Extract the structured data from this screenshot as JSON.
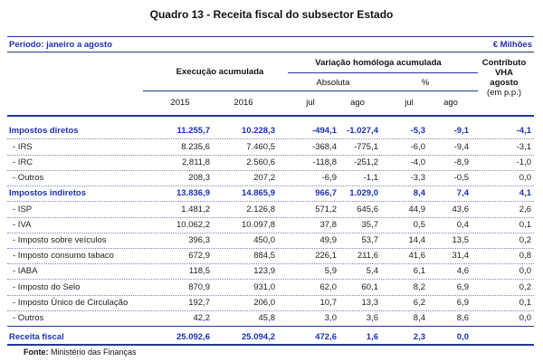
{
  "title": "Quadro 13 - Receita fiscal do subsector Estado",
  "periodo": "Período: janeiro a agosto",
  "unit": "€ Milhões",
  "headers": {
    "execucao": "Execução acumulada",
    "variacao": "Variação homóloga acumulada",
    "absoluta": "Absoluta",
    "pct": "%",
    "contributo": "Contributo VHA agosto (em p.p.)",
    "contributo_1": "Contributo",
    "contributo_2": "VHA",
    "contributo_3": "agosto",
    "contributo_4": "(em p.p.)",
    "y2015": "2015",
    "y2016": "2016",
    "jul1": "jul",
    "ago1": "ago",
    "jul2": "jul",
    "ago2": "ago"
  },
  "rows": [
    {
      "label": "Impostos diretos",
      "kind": "main",
      "v": [
        "11.255,7",
        "10.228,3",
        "-494,1",
        "-1.027,4",
        "-5,3",
        "-9,1",
        "-4,1"
      ]
    },
    {
      "label": "- IRS",
      "kind": "sub",
      "v": [
        "8.235,6",
        "7.460,5",
        "-368,4",
        "-775,1",
        "-6,0",
        "-9,4",
        "-3,1"
      ]
    },
    {
      "label": "- IRC",
      "kind": "sub",
      "v": [
        "2.811,8",
        "2.560,6",
        "-118,8",
        "-251,2",
        "-4,0",
        "-8,9",
        "-1,0"
      ]
    },
    {
      "label": "- Outros",
      "kind": "sub",
      "v": [
        "208,3",
        "207,2",
        "-6,9",
        "-1,1",
        "-3,3",
        "-0,5",
        "0,0"
      ]
    },
    {
      "label": "Impostos indiretos",
      "kind": "main",
      "v": [
        "13.836,9",
        "14.865,9",
        "966,7",
        "1.029,0",
        "8,4",
        "7,4",
        "4,1"
      ]
    },
    {
      "label": "- ISP",
      "kind": "sub",
      "v": [
        "1.481,2",
        "2.126,8",
        "571,2",
        "645,6",
        "44,9",
        "43,6",
        "2,6"
      ]
    },
    {
      "label": "- IVA",
      "kind": "sub",
      "v": [
        "10.062,2",
        "10.097,8",
        "37,8",
        "35,7",
        "0,5",
        "0,4",
        "0,1"
      ]
    },
    {
      "label": "- Imposto sobre veículos",
      "kind": "sub",
      "v": [
        "396,3",
        "450,0",
        "49,9",
        "53,7",
        "14,4",
        "13,5",
        "0,2"
      ]
    },
    {
      "label": "- Imposto consumo tabaco",
      "kind": "sub",
      "v": [
        "672,9",
        "884,5",
        "226,1",
        "211,6",
        "41,6",
        "31,4",
        "0,8"
      ]
    },
    {
      "label": "- IABA",
      "kind": "sub",
      "v": [
        "118,5",
        "123,9",
        "5,9",
        "5,4",
        "6,1",
        "4,6",
        "0,0"
      ]
    },
    {
      "label": "- Imposto do Selo",
      "kind": "sub",
      "v": [
        "870,9",
        "931,0",
        "62,0",
        "60,1",
        "8,2",
        "6,9",
        "0,2"
      ]
    },
    {
      "label": "- Imposto Único de Circulação",
      "kind": "sub",
      "v": [
        "192,7",
        "206,0",
        "10,7",
        "13,3",
        "6,2",
        "6,9",
        "0,1"
      ]
    },
    {
      "label": "- Outros",
      "kind": "sub",
      "v": [
        "42,2",
        "45,8",
        "3,0",
        "3,6",
        "8,4",
        "8,6",
        "0,0"
      ]
    },
    {
      "label": "Receita fiscal",
      "kind": "total",
      "v": [
        "25.092,6",
        "25.094,2",
        "472,6",
        "1,6",
        "2,3",
        "0,0",
        ""
      ]
    }
  ],
  "source_label": "Fonte:",
  "source_value": "Ministério das Finanças"
}
